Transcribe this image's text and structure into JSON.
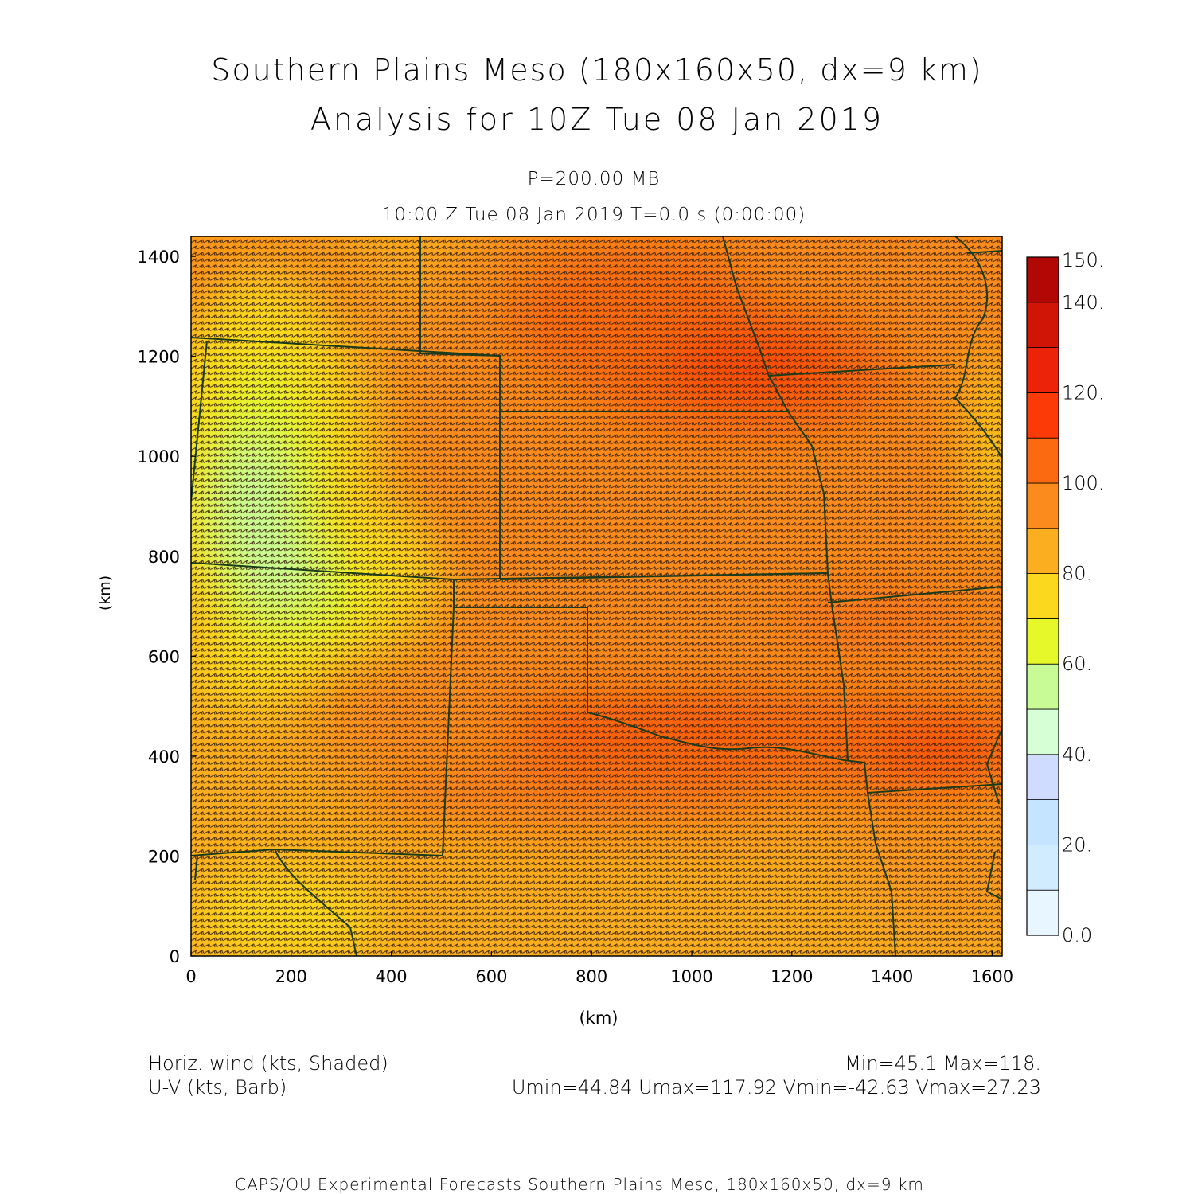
{
  "title": {
    "line1": "Southern Plains Meso (180x160x50, dx=9 km)",
    "line2": "Analysis for 10Z Tue 08 Jan 2019"
  },
  "subtitle": {
    "level": "P=200.00 MB",
    "time": "10:00 Z Tue 08 Jan 2019    T=0.0 s (0:00:00)"
  },
  "axes": {
    "xlabel": "(km)",
    "ylabel": "(km)",
    "xlim": [
      0,
      1620
    ],
    "ylim": [
      0,
      1440
    ],
    "xticks": [
      "0",
      "200",
      "400",
      "600",
      "800",
      "1000",
      "1200",
      "1400",
      "1600"
    ],
    "yticks": [
      "0",
      "200",
      "400",
      "600",
      "800",
      "1000",
      "1200",
      "1400"
    ]
  },
  "colorbar": {
    "labels": [
      "0.0",
      "20.",
      "40.",
      "60.",
      "80.",
      "100.",
      "120.",
      "140.",
      "150."
    ],
    "range": [
      0,
      150
    ],
    "levels": [
      0,
      10,
      20,
      30,
      40,
      50,
      60,
      70,
      80,
      90,
      100,
      110,
      120,
      130,
      140,
      150
    ],
    "colors": [
      "#e8f6ff",
      "#d2ecff",
      "#c4e4ff",
      "#cfdcff",
      "#d6ffd6",
      "#c8fa96",
      "#e6f72a",
      "#fbd81d",
      "#fbae1f",
      "#fb8b1c",
      "#fb6a11",
      "#fb3a08",
      "#ec2209",
      "#d01507",
      "#b20805"
    ]
  },
  "legend": {
    "shaded": "Horiz. wind (kts, Shaded)",
    "barb": "U-V (kts, Barb)",
    "minmax": "Min=45.1 Max=118.",
    "uv": "Umin=44.84 Umax=117.92 Vmin=-42.63 Vmax=27.23"
  },
  "footer": "CAPS/OU Experimental Forecasts  Southern Plains Meso, 180x160x50, dx=9 km",
  "colors": {
    "border": "#1c3b1c",
    "barb": "#3d2410"
  }
}
